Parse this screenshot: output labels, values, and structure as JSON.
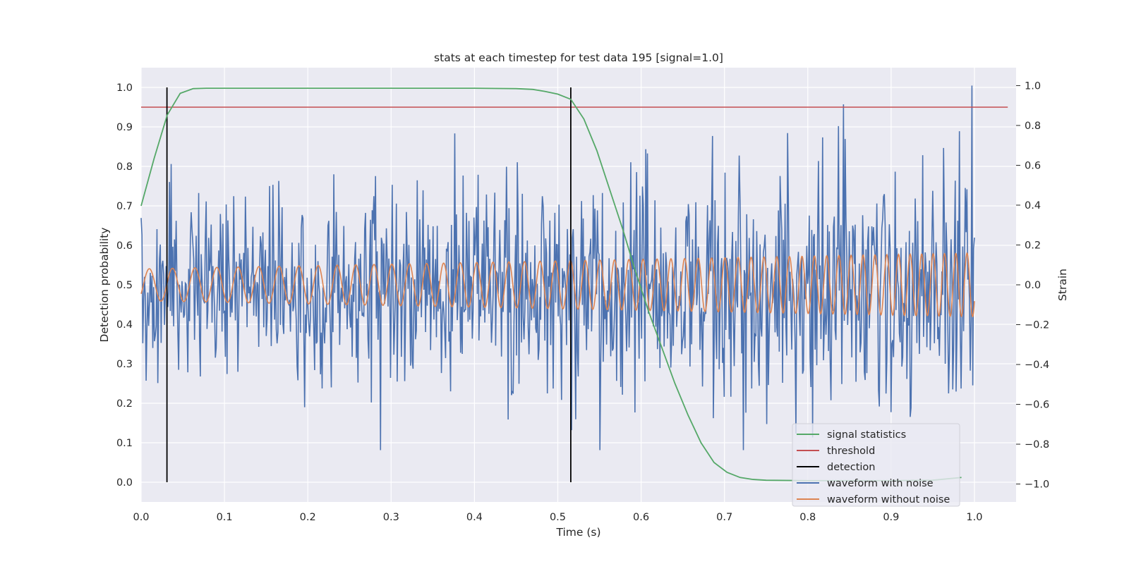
{
  "chart_data": {
    "type": "line",
    "title": "stats at each timestep for test data 195 [signal=1.0]",
    "xlabel": "Time (s)",
    "ylabel": "Detection probability",
    "y2label": "Strain",
    "xlim": [
      0.0,
      1.05
    ],
    "ylim": [
      -0.05,
      1.05
    ],
    "y2lim": [
      -1.09,
      1.09
    ],
    "xticks": [
      0.0,
      0.1,
      0.2,
      0.3,
      0.4,
      0.5,
      0.6,
      0.7,
      0.8,
      0.9,
      1.0
    ],
    "yticks": [
      0.0,
      0.1,
      0.2,
      0.3,
      0.4,
      0.5,
      0.6,
      0.7,
      0.8,
      0.9,
      1.0
    ],
    "y2ticks": [
      -1.0,
      -0.8,
      -0.6,
      -0.4,
      -0.2,
      0.0,
      0.2,
      0.4,
      0.6,
      0.8,
      1.0
    ],
    "xtick_labels": [
      "0.0",
      "0.1",
      "0.2",
      "0.3",
      "0.4",
      "0.5",
      "0.6",
      "0.7",
      "0.8",
      "0.9",
      "1.0"
    ],
    "ytick_labels": [
      "0.0",
      "0.1",
      "0.2",
      "0.3",
      "0.4",
      "0.5",
      "0.6",
      "0.7",
      "0.8",
      "0.9",
      "1.0"
    ],
    "y2tick_labels": [
      "−1.0",
      "−0.8",
      "−0.6",
      "−0.4",
      "−0.2",
      "0.0",
      "0.2",
      "0.4",
      "0.6",
      "0.8",
      "1.0"
    ],
    "grid": true,
    "legend_position": "lower-right",
    "colors": {
      "background": "#eaeaf2",
      "grid": "#ffffff",
      "signal_statistics": "#55a868",
      "threshold": "#c44e52",
      "detection": "#000000",
      "waveform_with_noise": "#4c72b0",
      "waveform_without_noise": "#dd8452"
    },
    "series": [
      {
        "name": "signal statistics",
        "axis": "left",
        "x": [
          0.0,
          0.0156,
          0.0313,
          0.0469,
          0.0625,
          0.0781,
          0.1,
          0.2,
          0.3,
          0.4,
          0.45,
          0.47,
          0.4844,
          0.5,
          0.5156,
          0.5313,
          0.5469,
          0.5625,
          0.5781,
          0.5938,
          0.6094,
          0.625,
          0.6406,
          0.6563,
          0.6719,
          0.6875,
          0.7031,
          0.7188,
          0.7344,
          0.75,
          0.8,
          0.85,
          0.9,
          0.95,
          0.9844
        ],
        "y": [
          0.7,
          0.82,
          0.93,
          0.985,
          0.997,
          0.998,
          0.998,
          0.998,
          0.998,
          0.998,
          0.997,
          0.995,
          0.99,
          0.983,
          0.97,
          0.92,
          0.84,
          0.74,
          0.64,
          0.53,
          0.43,
          0.34,
          0.25,
          0.17,
          0.1,
          0.05,
          0.025,
          0.012,
          0.007,
          0.005,
          0.004,
          0.004,
          0.004,
          0.005,
          0.012
        ]
      },
      {
        "name": "threshold",
        "axis": "left",
        "x": [
          0.0,
          1.04
        ],
        "y": [
          0.95,
          0.95
        ]
      },
      {
        "name": "detection",
        "axis": "left",
        "x": [
          0.031,
          0.5156
        ],
        "y": [
          1.0,
          1.0
        ]
      },
      {
        "name": "waveform with noise",
        "axis": "right",
        "x_start": 0.0,
        "x_end": 1.0,
        "amplitude_envelope": [
          0.3,
          0.45
        ],
        "y_min": -0.83,
        "y_max": 1.0,
        "points": 1000
      },
      {
        "name": "waveform without noise",
        "axis": "right",
        "x_start": 0.0,
        "x_end": 1.0,
        "frequency_start_hz": 35,
        "frequency_end_hz": 75,
        "amplitude_start": 0.08,
        "amplitude_end": 0.16
      }
    ]
  }
}
